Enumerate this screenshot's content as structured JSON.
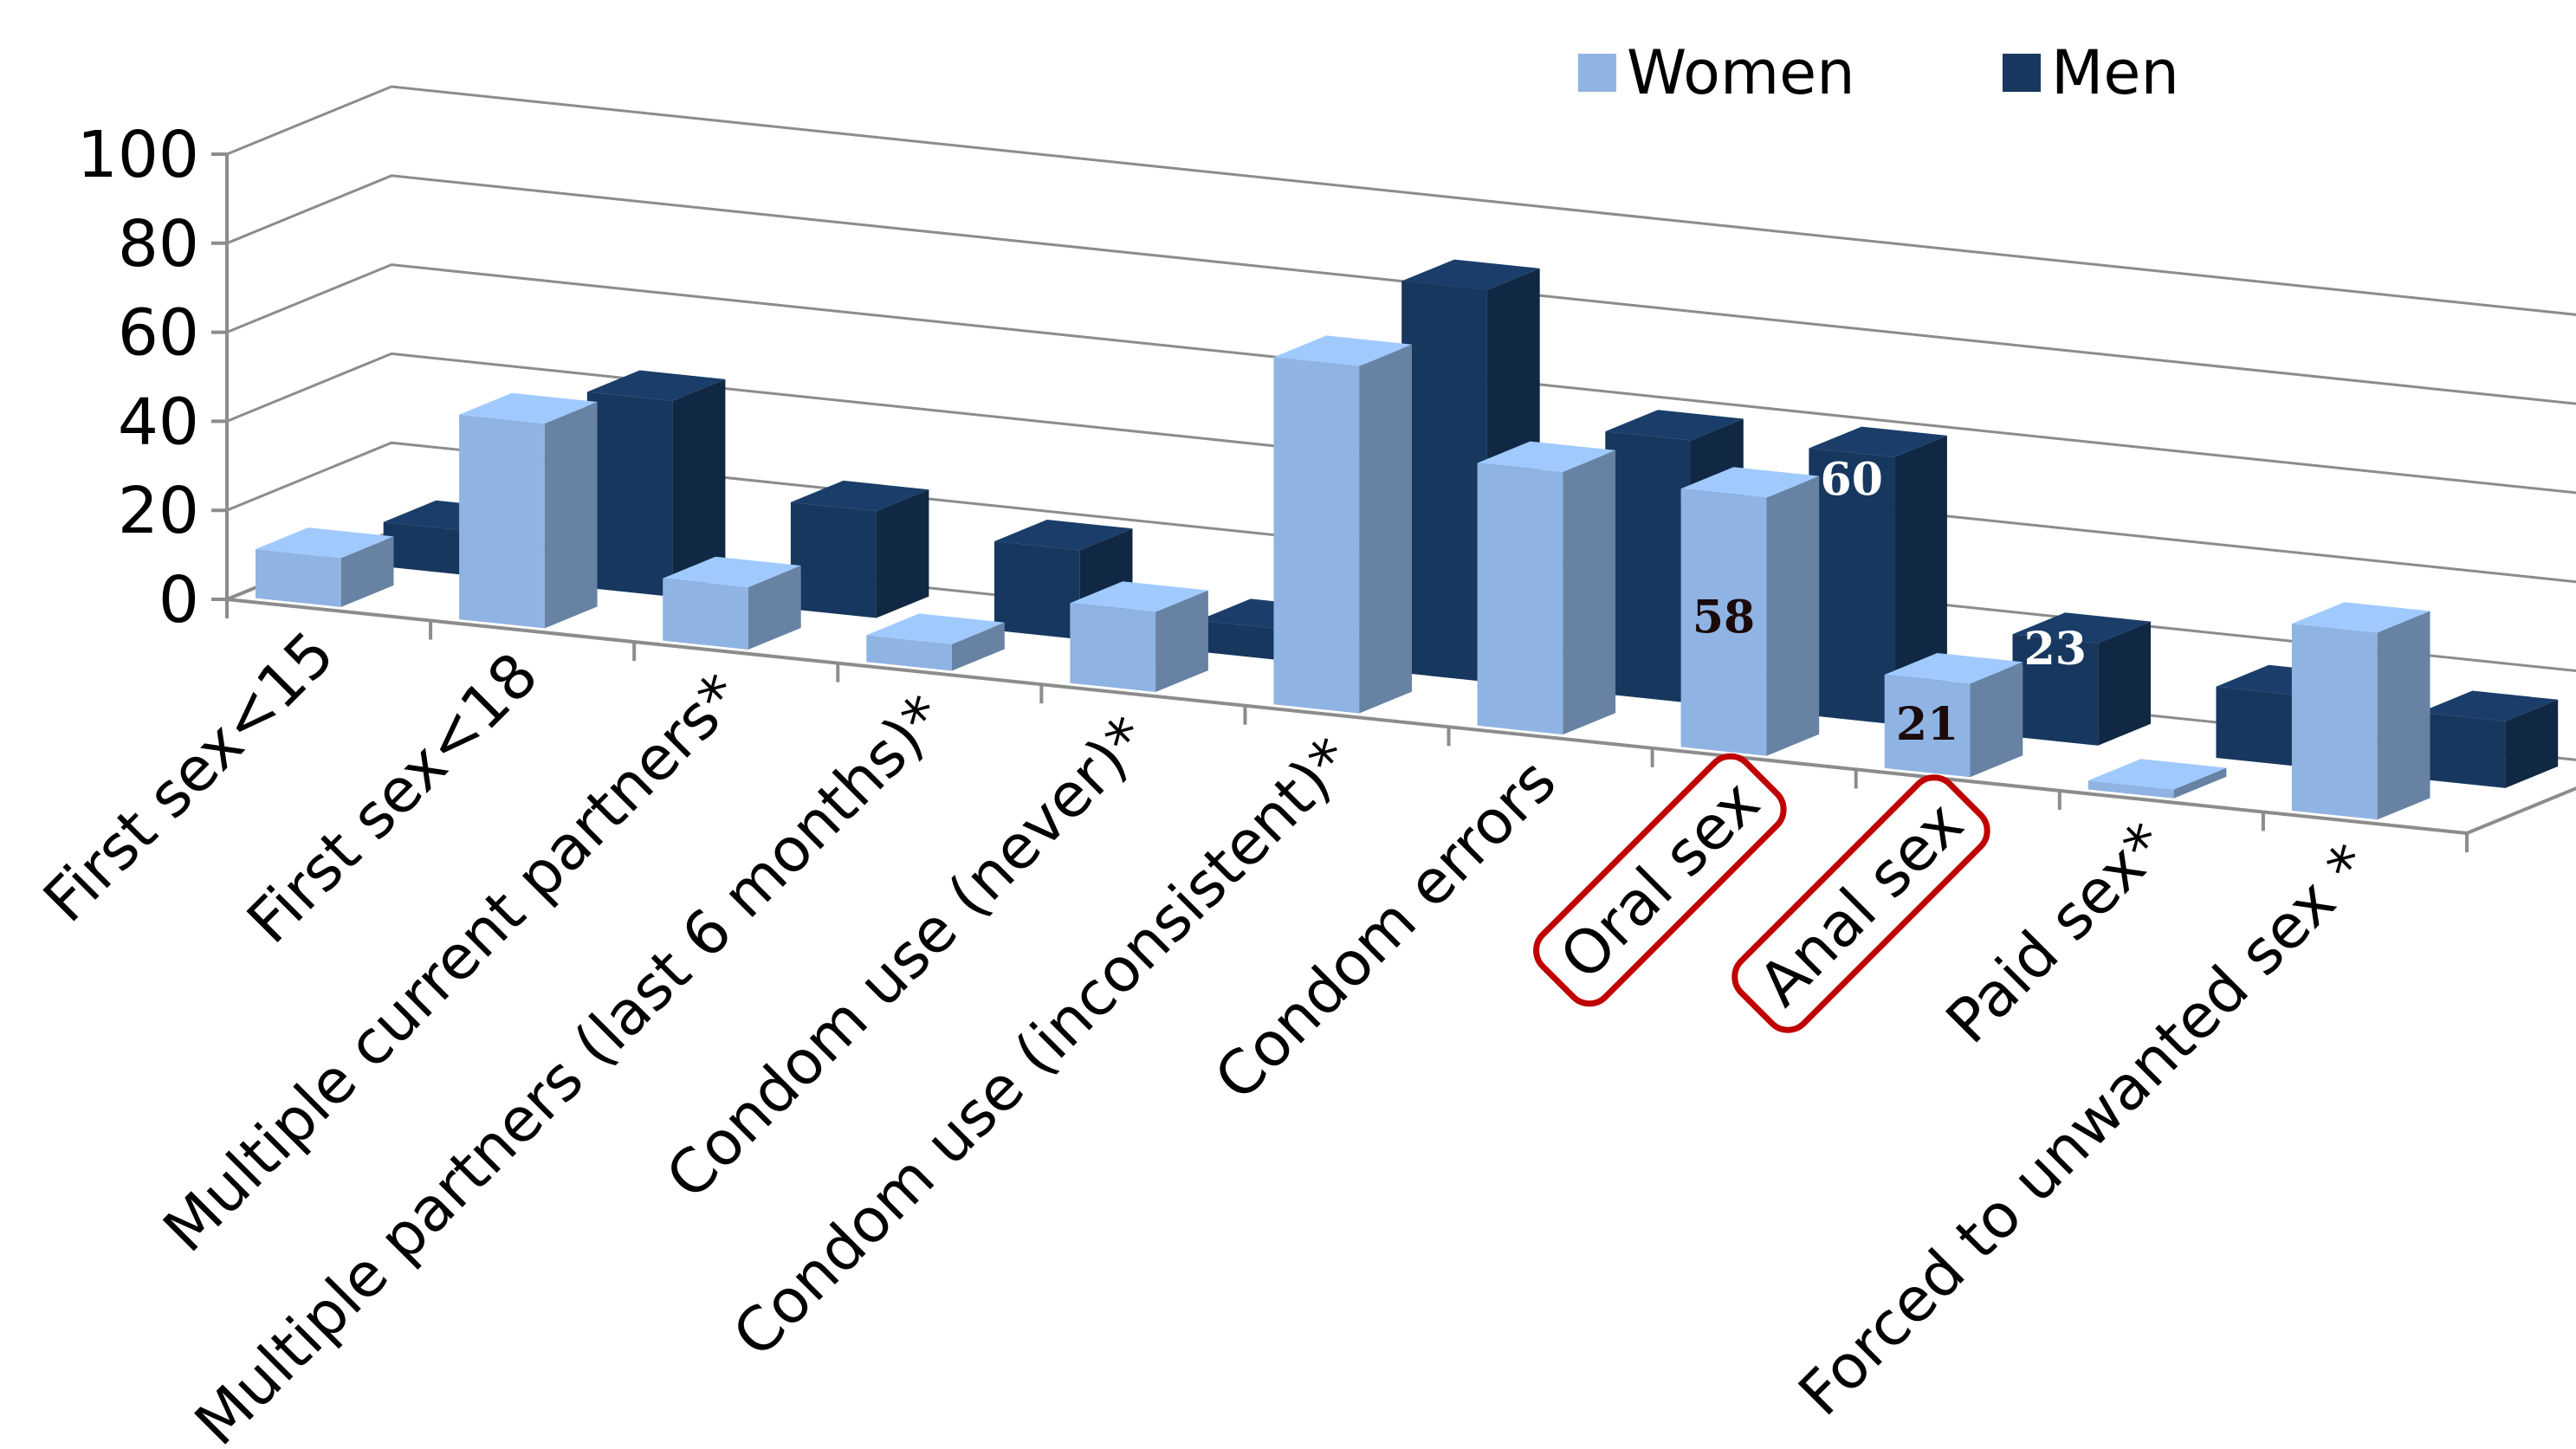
{
  "chart_data": {
    "type": "bar",
    "title": "",
    "xlabel": "",
    "ylabel": "",
    "ylim": [
      0,
      100
    ],
    "yticks": [
      0,
      20,
      40,
      60,
      80,
      100
    ],
    "ytick_labels": [
      "0",
      "20",
      "40",
      "60",
      "80",
      "100"
    ],
    "grid": true,
    "legend_position": "top-right",
    "three_d": true,
    "categories": [
      "First sex<15",
      "First sex<18",
      "Multiple current partners*",
      "Multiple partners (last 6 months)*",
      "Condom use (never)*",
      "Condom use (inconsistent)*",
      "Condom errors",
      "Oral sex",
      "Anal sex",
      "Paid sex*",
      "Forced to unwanted sex *"
    ],
    "highlighted_categories": [
      "Oral sex",
      "Anal sex"
    ],
    "highlight_color": "#c00000",
    "series": [
      {
        "name": "Women",
        "color": "#8fb4e3",
        "values": [
          11,
          46,
          14,
          6,
          18,
          78,
          59,
          58,
          21,
          2,
          42
        ]
      },
      {
        "name": "Men",
        "color": "#17375e",
        "values": [
          10,
          44,
          24,
          20,
          7,
          88,
          59,
          60,
          23,
          16,
          15
        ]
      }
    ],
    "data_labels": [
      {
        "series": "Women",
        "category": "Oral sex",
        "text": "58",
        "color": "#1a0a0a"
      },
      {
        "series": "Men",
        "category": "Oral sex",
        "text": "60",
        "color": "#ffffff"
      },
      {
        "series": "Women",
        "category": "Anal sex",
        "text": "21",
        "color": "#1a0a0a"
      },
      {
        "series": "Men",
        "category": "Anal sex",
        "text": "23",
        "color": "#ffffff"
      }
    ]
  }
}
